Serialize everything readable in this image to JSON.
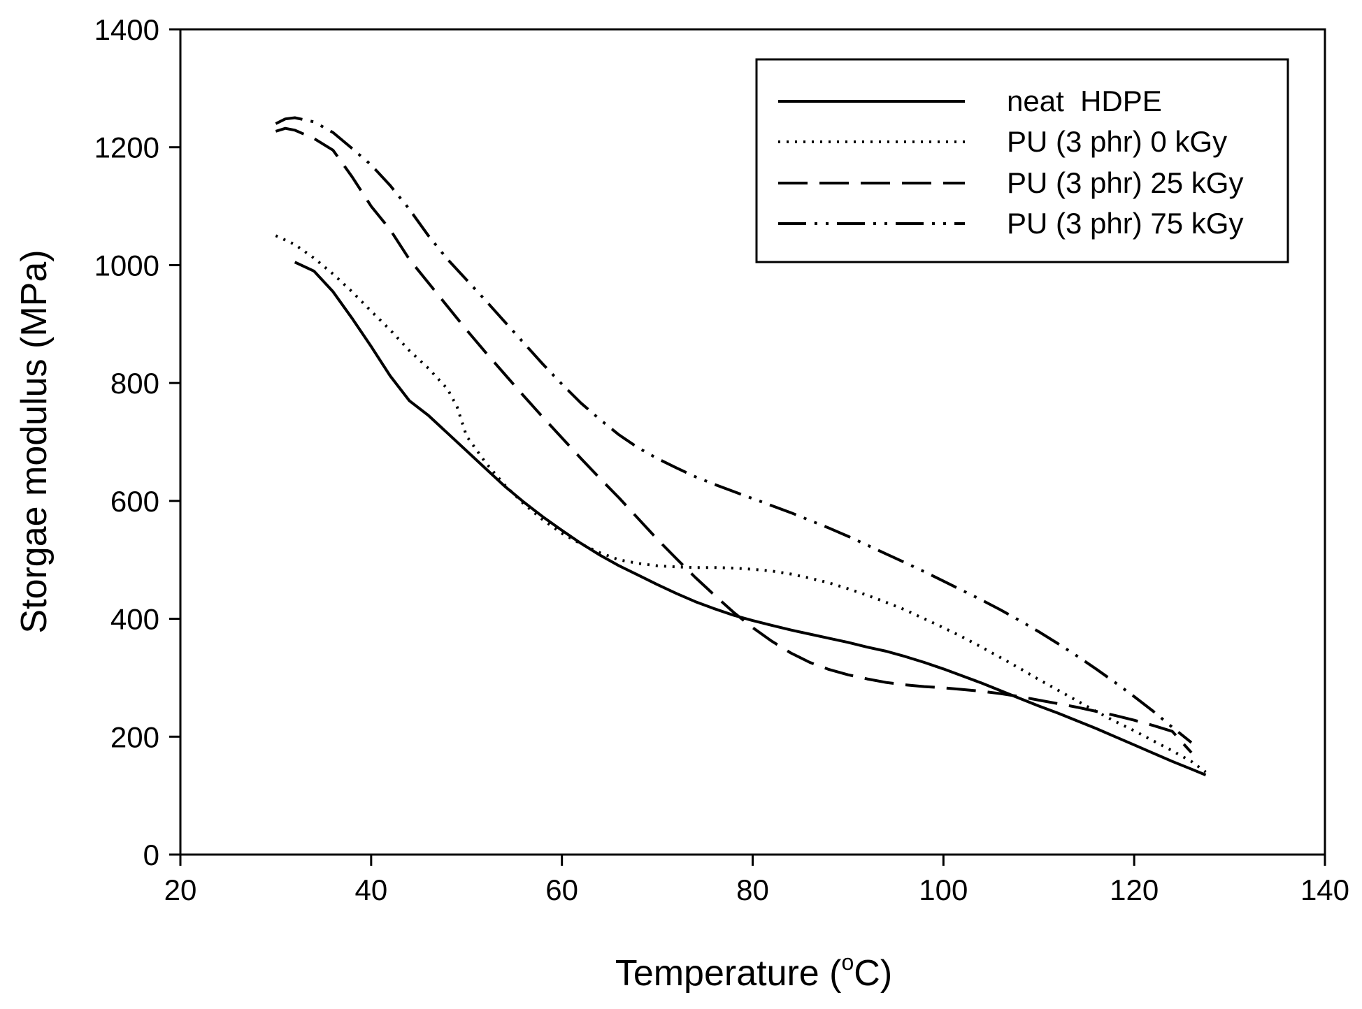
{
  "chart_data": {
    "type": "line",
    "title": "",
    "xlabel": "Temperature (",
    "xlabel_sup": "o",
    "xlabel_unit": "C)",
    "ylabel": "Storgae modulus (MPa)",
    "xlim": [
      20,
      140
    ],
    "ylim": [
      0,
      1400
    ],
    "xticks": [
      20,
      40,
      60,
      80,
      100,
      120,
      140
    ],
    "yticks": [
      0,
      200,
      400,
      600,
      800,
      1000,
      1200,
      1400
    ],
    "grid": false,
    "legend_position": "top-right",
    "series": [
      {
        "name": "neat  HDPE",
        "style": "solid",
        "x": [
          32,
          34,
          36,
          38,
          40,
          42,
          44,
          46,
          48,
          50,
          52,
          54,
          56,
          58,
          60,
          62,
          64,
          66,
          68,
          70,
          72,
          74,
          76,
          78,
          80,
          82,
          84,
          86,
          88,
          90,
          92,
          94,
          96,
          98,
          100,
          102,
          104,
          106,
          108,
          110,
          112,
          114,
          116,
          118,
          120,
          122,
          124,
          126,
          127.5
        ],
        "y": [
          1005,
          990,
          955,
          910,
          862,
          812,
          770,
          745,
          715,
          685,
          655,
          625,
          598,
          573,
          550,
          528,
          508,
          490,
          474,
          458,
          443,
          429,
          417,
          406,
          397,
          389,
          381,
          374,
          367,
          360,
          352,
          345,
          336,
          326,
          315,
          303,
          291,
          278,
          265,
          252,
          240,
          227,
          214,
          200,
          186,
          172,
          158,
          145,
          135
        ]
      },
      {
        "name": "PU (3 phr) 0 kGy",
        "style": "dotted",
        "x": [
          30,
          32,
          34,
          36,
          38,
          40,
          42,
          44,
          46,
          48,
          49,
          50,
          52,
          54,
          56,
          58,
          60,
          62,
          64,
          66,
          68,
          70,
          72,
          74,
          76,
          78,
          80,
          82,
          84,
          86,
          88,
          90,
          92,
          94,
          96,
          98,
          100,
          102,
          104,
          106,
          108,
          110,
          112,
          114,
          116,
          118,
          120,
          122,
          124,
          126,
          127.5
        ],
        "y": [
          1050,
          1035,
          1012,
          985,
          955,
          922,
          890,
          855,
          825,
          790,
          760,
          710,
          665,
          627,
          595,
          568,
          545,
          527,
          512,
          500,
          494,
          490,
          488,
          487,
          487,
          486,
          484,
          481,
          476,
          469,
          461,
          451,
          440,
          428,
          415,
          400,
          385,
          369,
          352,
          334,
          316,
          297,
          279,
          261,
          243,
          226,
          210,
          193,
          176,
          158,
          140
        ]
      },
      {
        "name": "PU (3 phr) 25 kGy",
        "style": "dashed",
        "x": [
          30,
          31,
          32,
          34,
          36,
          38,
          40,
          42,
          44,
          46,
          48,
          50,
          52,
          54,
          56,
          58,
          60,
          62,
          64,
          66,
          68,
          70,
          72,
          74,
          76,
          78,
          80,
          82,
          84,
          86,
          88,
          90,
          92,
          94,
          96,
          98,
          100,
          102,
          104,
          106,
          108,
          110,
          112,
          114,
          116,
          118,
          120,
          122,
          124,
          126
        ],
        "y": [
          1227,
          1232,
          1229,
          1215,
          1195,
          1150,
          1100,
          1060,
          1010,
          970,
          930,
          890,
          852,
          815,
          778,
          742,
          707,
          672,
          638,
          605,
          570,
          535,
          502,
          470,
          440,
          411,
          385,
          362,
          342,
          326,
          314,
          305,
          298,
          292,
          288,
          285,
          283,
          280,
          277,
          273,
          268,
          262,
          256,
          250,
          243,
          236,
          228,
          219,
          209,
          173
        ]
      },
      {
        "name": "PU (3 phr) 75 kGy",
        "style": "dash-dot-dot",
        "x": [
          30,
          31,
          32,
          34,
          36,
          38,
          40,
          42,
          44,
          46,
          48,
          50,
          52,
          54,
          56,
          58,
          60,
          62,
          64,
          66,
          68,
          70,
          72,
          74,
          76,
          78,
          80,
          82,
          84,
          86,
          88,
          90,
          92,
          94,
          96,
          98,
          100,
          102,
          104,
          106,
          108,
          110,
          112,
          114,
          116,
          118,
          120,
          122,
          124,
          126
        ],
        "y": [
          1240,
          1248,
          1250,
          1243,
          1225,
          1198,
          1170,
          1135,
          1095,
          1050,
          1010,
          975,
          940,
          904,
          868,
          832,
          798,
          766,
          738,
          712,
          690,
          672,
          656,
          641,
          628,
          616,
          604,
          592,
          580,
          567,
          554,
          540,
          525,
          510,
          495,
          480,
          464,
          448,
          432,
          415,
          397,
          378,
          358,
          337,
          315,
          292,
          268,
          243,
          216,
          190
        ]
      }
    ]
  }
}
